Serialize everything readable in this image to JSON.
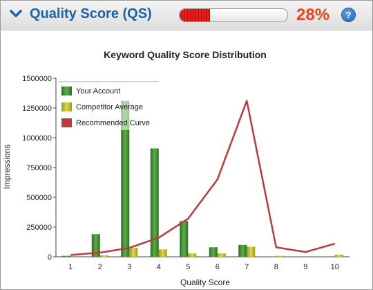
{
  "header": {
    "title": "Quality Score (QS)",
    "progress_percent": 28,
    "progress_label": "28%",
    "help_label": "?"
  },
  "chart_data": {
    "type": "bar",
    "title": "Keyword Quality Score Distribution",
    "xlabel": "Quality Score",
    "ylabel": "Impressions",
    "categories": [
      "1",
      "2",
      "3",
      "4",
      "5",
      "6",
      "7",
      "8",
      "9",
      "10"
    ],
    "ylim": [
      0,
      1500000
    ],
    "yticks": [
      0,
      250000,
      500000,
      750000,
      1000000,
      1250000,
      1500000
    ],
    "ytick_labels": [
      "0",
      "250000",
      "500000",
      "750000",
      "1000000",
      "1250000",
      "1500000"
    ],
    "grid": false,
    "legend_position": "top-left",
    "series": [
      {
        "name": "Your Account",
        "kind": "bar",
        "color": "#3c8d2c",
        "values": [
          8000,
          190000,
          1310000,
          910000,
          300000,
          80000,
          100000,
          0,
          0,
          0
        ]
      },
      {
        "name": "Competitor Average",
        "kind": "bar",
        "color": "#c9c42a",
        "values": [
          0,
          12000,
          75000,
          62000,
          28000,
          28000,
          85000,
          8000,
          0,
          18000
        ]
      },
      {
        "name": "Recommended Curve",
        "kind": "line",
        "color": "#c0393f",
        "values": [
          15000,
          35000,
          75000,
          160000,
          320000,
          650000,
          1310000,
          80000,
          40000,
          110000
        ]
      }
    ]
  }
}
